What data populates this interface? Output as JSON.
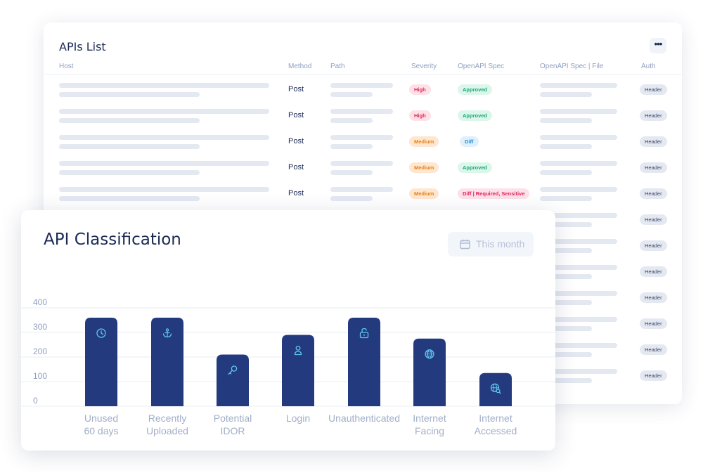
{
  "apis_list": {
    "title": "APIs List",
    "more_label": "•••",
    "columns": [
      "Host",
      "Method",
      "Path",
      "Severity",
      "OpenAPI Spec",
      "OpenAPI Spec | File",
      "Auth"
    ],
    "rows": [
      {
        "method": "Post",
        "severity": "High",
        "spec": "Approved",
        "auth": "Header"
      },
      {
        "method": "Post",
        "severity": "High",
        "spec": "Approved",
        "auth": "Header"
      },
      {
        "method": "Post",
        "severity": "Medium",
        "spec": "Diff",
        "auth": "Header"
      },
      {
        "method": "Post",
        "severity": "Medium",
        "spec": "Approved",
        "auth": "Header"
      },
      {
        "method": "Post",
        "severity": "Medium",
        "spec": "Diff | Required, Sensitive",
        "auth": "Header"
      },
      {
        "auth": "Header"
      },
      {
        "auth": "Header"
      },
      {
        "auth": "Header"
      },
      {
        "auth": "Header"
      },
      {
        "auth": "Header"
      },
      {
        "auth": "Header"
      },
      {
        "auth": "Header"
      }
    ]
  },
  "classification": {
    "title": "API Classification",
    "period": {
      "label": "This month",
      "icon": "calendar-icon"
    }
  },
  "chart_data": {
    "type": "bar",
    "title": "API Classification",
    "categories": [
      [
        "Unused",
        "60 days"
      ],
      [
        "Recently",
        "Uploaded"
      ],
      [
        "Potential",
        "IDOR"
      ],
      [
        "Login"
      ],
      [
        "Unauthenticated"
      ],
      [
        "Internet",
        "Facing"
      ],
      [
        "Internet",
        "Accessed"
      ]
    ],
    "category_icons": [
      "clock-icon",
      "anchor-icon",
      "key-icon",
      "user-icon",
      "unlock-icon",
      "globe-icon",
      "globe-search-icon"
    ],
    "values": [
      360,
      360,
      210,
      290,
      360,
      275,
      135
    ],
    "ylim": [
      0,
      400
    ],
    "yticks": [
      0,
      100,
      200,
      300,
      400
    ],
    "bar_color": "#233a7e",
    "icon_color": "#5fc8f0",
    "grid": true
  }
}
